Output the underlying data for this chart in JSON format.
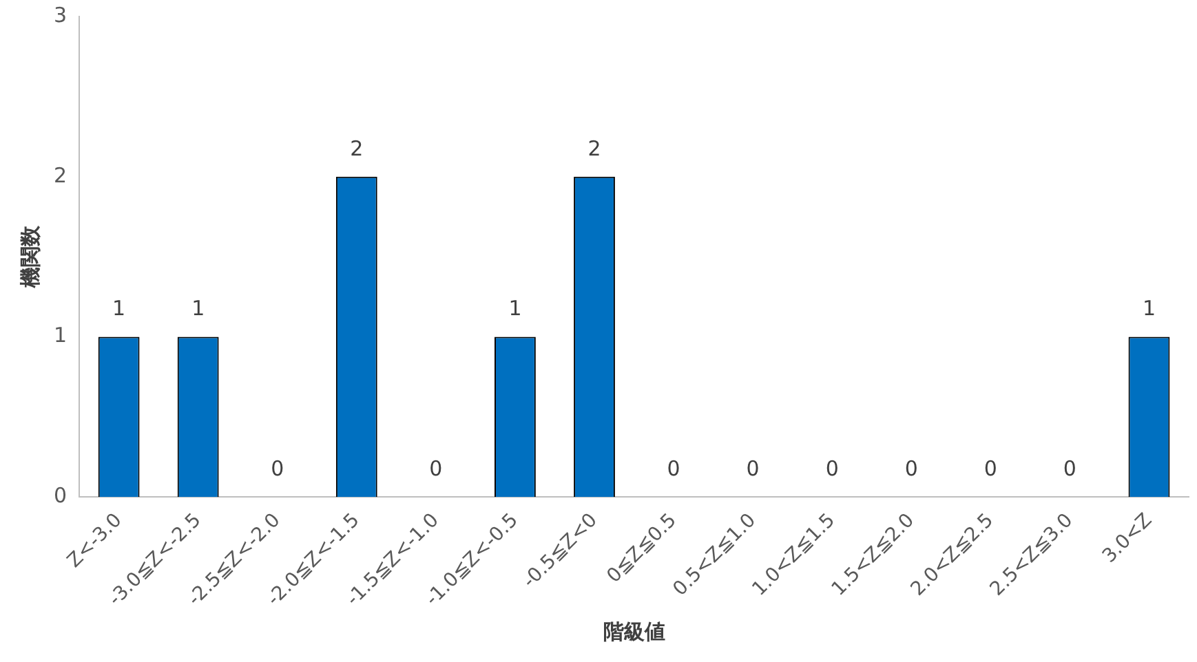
{
  "chart_data": {
    "type": "bar",
    "xlabel": "階級値",
    "ylabel": "機関数",
    "categories": [
      "Z<-3.0",
      "-3.0≦Z<-2.5",
      "-2.5≦Z<-2.0",
      "-2.0≦Z<-1.5",
      "-1.5≦Z<-1.0",
      "-1.0≦Z<-0.5",
      "-0.5≦Z<0",
      "0≦Z≦0.5",
      "0.5<Z≦1.0",
      "1.0<Z≦1.5",
      "1.5<Z≦2.0",
      "2.0<Z≦2.5",
      "2.5<Z≦3.0",
      "3.0<Z"
    ],
    "values": [
      1,
      1,
      0,
      2,
      0,
      1,
      2,
      0,
      0,
      0,
      0,
      0,
      0,
      1
    ],
    "color": "#0070c0",
    "ylim": [
      0,
      3
    ],
    "yticks": [
      0,
      1,
      2,
      3
    ],
    "grid": false,
    "legend": false,
    "data_labels": true
  }
}
